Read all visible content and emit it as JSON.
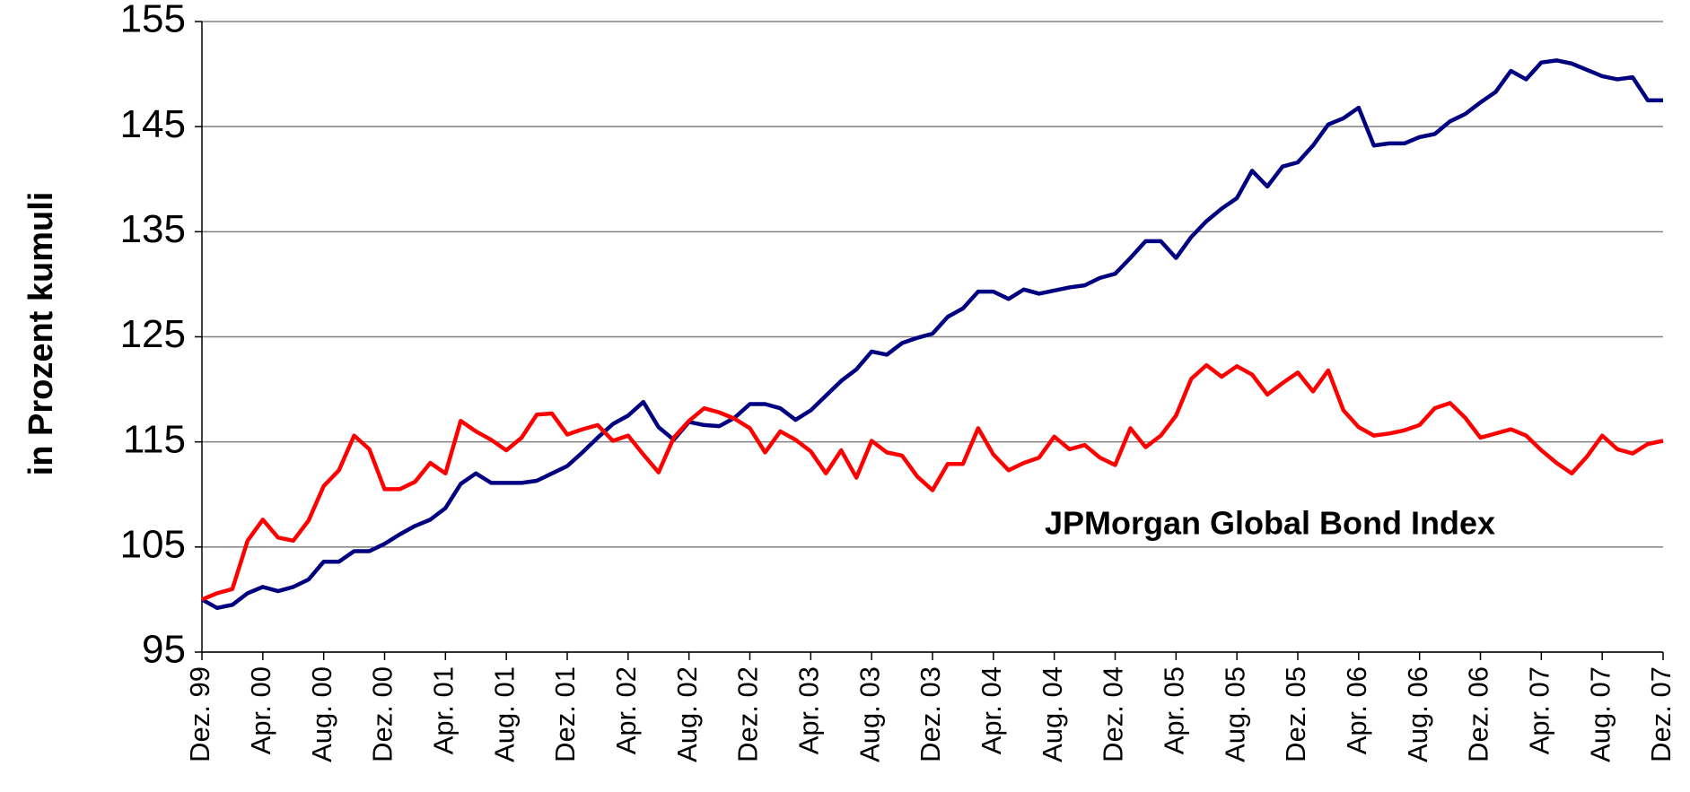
{
  "chart_data": {
    "type": "line",
    "y_label": "in Prozent kumuli",
    "categories": [
      "Dez. 99",
      null,
      null,
      null,
      "Apr. 00",
      null,
      null,
      null,
      "Aug. 00",
      null,
      null,
      null,
      "Dez. 00",
      null,
      null,
      null,
      "Apr. 01",
      null,
      null,
      null,
      "Aug. 01",
      null,
      null,
      null,
      "Dez. 01",
      null,
      null,
      null,
      "Apr. 02",
      null,
      null,
      null,
      "Aug. 02",
      null,
      null,
      null,
      "Dez. 02",
      null,
      null,
      null,
      "Apr. 03",
      null,
      null,
      null,
      "Aug. 03",
      null,
      null,
      null,
      "Dez. 03",
      null,
      null,
      null,
      "Apr. 04",
      null,
      null,
      null,
      "Aug. 04",
      null,
      null,
      null,
      "Dez. 04",
      null,
      null,
      null,
      "Apr. 05",
      null,
      null,
      null,
      "Aug. 05",
      null,
      null,
      null,
      "Dez. 05",
      null,
      null,
      null,
      "Apr. 06",
      null,
      null,
      null,
      "Aug. 06",
      null,
      null,
      null,
      "Dez. 06",
      null,
      null,
      null,
      "Apr. 07",
      null,
      null,
      null,
      "Aug. 07",
      null,
      null,
      null,
      "Dez. 07"
    ],
    "series": [
      {
        "color": "#000080",
        "values": [
          100,
          99.2,
          99.5,
          100.6,
          101.2,
          100.8,
          101.2,
          101.9,
          103.6,
          103.6,
          104.6,
          104.6,
          105.3,
          106.2,
          107.0,
          107.6,
          108.7,
          111.0,
          112.0,
          111.1,
          111.1,
          111.1,
          111.3,
          112.0,
          112.7,
          114.0,
          115.4,
          116.7,
          117.5,
          118.8,
          116.4,
          115.2,
          116.9,
          116.6,
          116.5,
          117.3,
          118.6,
          118.6,
          118.2,
          117.1,
          118.0,
          119.4,
          120.8,
          121.9,
          123.6,
          123.3,
          124.4,
          124.9,
          125.3,
          126.9,
          127.7,
          129.3,
          129.3,
          128.6,
          129.5,
          129.1,
          129.4,
          129.7,
          129.9,
          130.6,
          131.0,
          132.5,
          134.1,
          134.1,
          132.5,
          134.5,
          136.0,
          137.2,
          138.2,
          140.8,
          139.3,
          141.2,
          141.6,
          143.2,
          145.2,
          145.8,
          146.8,
          143.2,
          143.4,
          143.4,
          144.0,
          144.3,
          145.5,
          146.2,
          147.3,
          148.3,
          150.3,
          149.5,
          151.1,
          151.3,
          151.0,
          150.4,
          149.8,
          149.5,
          149.7,
          147.5,
          147.5
        ]
      },
      {
        "name": "JPMorgan Global Bond Index",
        "color": "#ff0000",
        "values": [
          100,
          100.6,
          101.0,
          105.6,
          107.6,
          105.9,
          105.6,
          107.5,
          110.8,
          112.3,
          115.6,
          114.3,
          110.5,
          110.5,
          111.2,
          113.0,
          112.0,
          117.0,
          116.0,
          115.2,
          114.2,
          115.4,
          117.6,
          117.7,
          115.7,
          116.2,
          116.6,
          115.1,
          115.6,
          113.8,
          112.1,
          115.4,
          117.0,
          118.2,
          117.8,
          117.2,
          116.3,
          114.0,
          116.0,
          115.2,
          114.1,
          112.0,
          114.2,
          111.6,
          115.1,
          114.0,
          113.7,
          111.7,
          110.4,
          112.9,
          112.9,
          116.3,
          113.8,
          112.3,
          113.0,
          113.5,
          115.5,
          114.3,
          114.7,
          113.5,
          112.8,
          116.3,
          114.5,
          115.6,
          117.5,
          121.0,
          122.3,
          121.2,
          122.2,
          121.4,
          119.5,
          120.6,
          121.6,
          119.8,
          121.8,
          118.0,
          116.4,
          115.6,
          115.8,
          116.1,
          116.6,
          118.2,
          118.7,
          117.3,
          115.4,
          115.8,
          116.2,
          115.6,
          114.2,
          113.0,
          112.0,
          113.6,
          115.6,
          114.3,
          113.9,
          114.8,
          115.1
        ]
      }
    ],
    "ylim": [
      95,
      155
    ],
    "yticks": [
      95,
      105,
      115,
      125,
      135,
      145,
      155
    ],
    "grid": true
  }
}
